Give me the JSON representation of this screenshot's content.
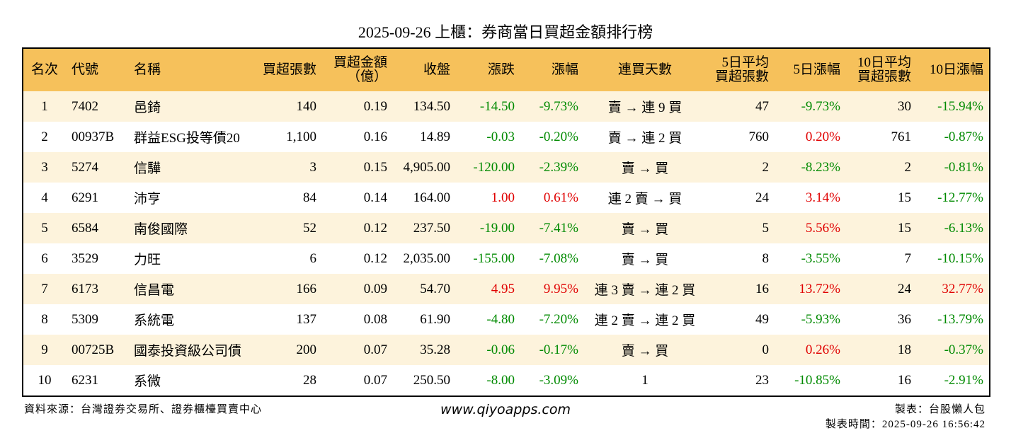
{
  "title": "2025-09-26 上櫃：券商當日買超金額排行榜",
  "table": {
    "header": [
      "名次",
      "代號",
      "名稱",
      "買超張數",
      "買超金額\n（億）",
      "收盤",
      "漲跌",
      "漲幅",
      "連買天數",
      "5日平均\n買超張數",
      "5日漲幅",
      "10日平均\n買超張數",
      "10日漲幅"
    ],
    "rows": [
      [
        "1",
        "7402",
        "邑錡",
        "140",
        "0.19",
        "134.50",
        "-14.50",
        "-9.73%",
        "賣 → 連 9 買",
        "47",
        "-9.73%",
        "30",
        "-15.94%"
      ],
      [
        "2",
        "00937B",
        "群益ESG投等債20",
        "1,100",
        "0.16",
        "14.89",
        "-0.03",
        "-0.20%",
        "賣 → 連 2 買",
        "760",
        "0.20%",
        "761",
        "-0.87%"
      ],
      [
        "3",
        "5274",
        "信驊",
        "3",
        "0.15",
        "4,905.00",
        "-120.00",
        "-2.39%",
        "賣 → 買",
        "2",
        "-8.23%",
        "2",
        "-0.81%"
      ],
      [
        "4",
        "6291",
        "沛亨",
        "84",
        "0.14",
        "164.00",
        "1.00",
        "0.61%",
        "連 2 賣 → 買",
        "24",
        "3.14%",
        "15",
        "-12.77%"
      ],
      [
        "5",
        "6584",
        "南俊國際",
        "52",
        "0.12",
        "237.50",
        "-19.00",
        "-7.41%",
        "賣 → 買",
        "5",
        "5.56%",
        "15",
        "-6.13%"
      ],
      [
        "6",
        "3529",
        "力旺",
        "6",
        "0.12",
        "2,035.00",
        "-155.00",
        "-7.08%",
        "賣 → 買",
        "8",
        "-3.55%",
        "7",
        "-10.15%"
      ],
      [
        "7",
        "6173",
        "信昌電",
        "166",
        "0.09",
        "54.70",
        "4.95",
        "9.95%",
        "連 3 賣 → 連 2 買",
        "16",
        "13.72%",
        "24",
        "32.77%"
      ],
      [
        "8",
        "5309",
        "系統電",
        "137",
        "0.08",
        "61.90",
        "-4.80",
        "-7.20%",
        "連 2 賣 → 連 2 買",
        "49",
        "-5.93%",
        "36",
        "-13.79%"
      ],
      [
        "9",
        "00725B",
        "國泰投資級公司債",
        "200",
        "0.07",
        "35.28",
        "-0.06",
        "-0.17%",
        "賣 → 買",
        "0",
        "0.26%",
        "18",
        "-0.37%"
      ],
      [
        "10",
        "6231",
        "系微",
        "28",
        "0.07",
        "250.50",
        "-8.00",
        "-3.09%",
        "1",
        "23",
        "-10.85%",
        "16",
        "-2.91%"
      ]
    ]
  },
  "footer": {
    "source": "資料來源：台灣證券交易所、證券櫃檯買賣中心",
    "site": "www.qiyoapps.com",
    "maker": "製表：台股懶人包",
    "time": "製表時間：2025-09-26 16:56:42"
  }
}
